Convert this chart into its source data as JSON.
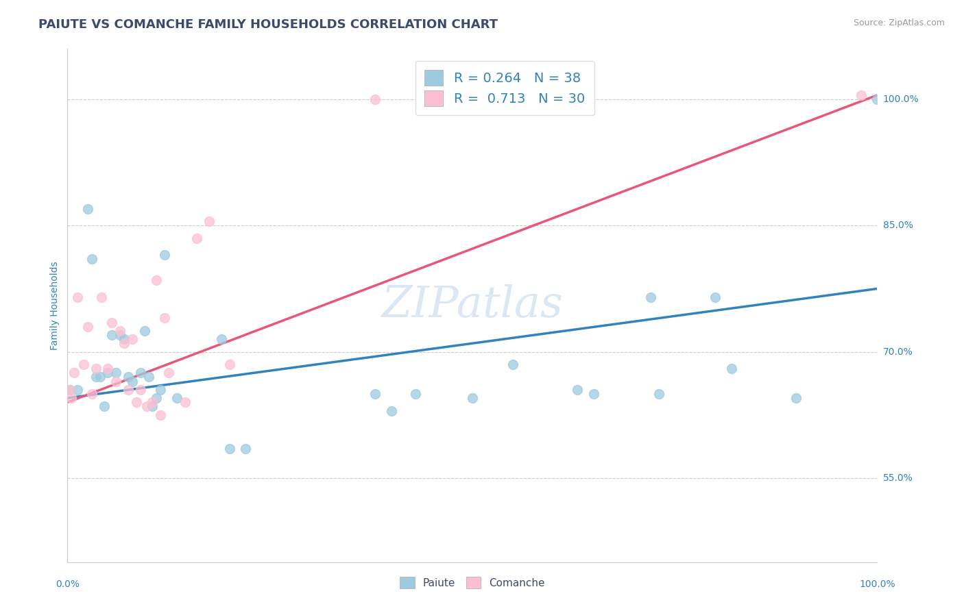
{
  "title": "PAIUTE VS COMANCHE FAMILY HOUSEHOLDS CORRELATION CHART",
  "source": "Source: ZipAtlas.com",
  "ylabel": "Family Households",
  "watermark": "ZIPatlas",
  "legend_blue_r": "R = 0.264",
  "legend_blue_n": "N = 38",
  "legend_pink_r": "R = 0.713",
  "legend_pink_n": "N = 30",
  "blue_scatter_color": "#9ecae1",
  "pink_scatter_color": "#fcbfd2",
  "blue_line_color": "#3182bd",
  "pink_line_color": "#e8577a",
  "title_color": "#3d4a6b",
  "axis_label_color": "#3182bd",
  "grid_color": "#cccccc",
  "background_color": "#ffffff",
  "paiute_x": [
    0.3,
    1.2,
    2.5,
    3.0,
    3.5,
    4.0,
    4.5,
    5.0,
    5.5,
    6.0,
    6.5,
    7.0,
    7.5,
    8.0,
    9.0,
    9.5,
    10.0,
    10.5,
    11.0,
    11.5,
    12.0,
    13.5,
    19.0,
    20.0,
    22.0,
    38.0,
    40.0,
    43.0,
    50.0,
    55.0,
    63.0,
    65.0,
    72.0,
    73.0,
    80.0,
    82.0,
    90.0,
    100.0
  ],
  "paiute_y": [
    65.5,
    65.5,
    87.0,
    81.0,
    67.0,
    67.0,
    63.5,
    67.5,
    72.0,
    67.5,
    72.0,
    71.5,
    67.0,
    66.5,
    67.5,
    72.5,
    67.0,
    63.5,
    64.5,
    65.5,
    81.5,
    64.5,
    71.5,
    58.5,
    58.5,
    65.0,
    63.0,
    65.0,
    64.5,
    68.5,
    65.5,
    65.0,
    76.5,
    65.0,
    76.5,
    68.0,
    64.5,
    100.0
  ],
  "comanche_x": [
    0.3,
    0.5,
    0.8,
    1.2,
    2.0,
    2.5,
    3.0,
    3.5,
    4.2,
    5.0,
    5.5,
    6.0,
    6.5,
    7.0,
    7.5,
    8.0,
    8.5,
    9.0,
    9.8,
    10.5,
    11.0,
    11.5,
    12.0,
    12.5,
    14.5,
    16.0,
    17.5,
    20.0,
    38.0,
    98.0
  ],
  "comanche_y": [
    65.5,
    64.5,
    67.5,
    76.5,
    68.5,
    73.0,
    65.0,
    68.0,
    76.5,
    68.0,
    73.5,
    66.5,
    72.5,
    71.0,
    65.5,
    71.5,
    64.0,
    65.5,
    63.5,
    64.0,
    78.5,
    62.5,
    74.0,
    67.5,
    64.0,
    83.5,
    85.5,
    68.5,
    100.0,
    100.5
  ],
  "blue_line_x": [
    0.0,
    100.0
  ],
  "blue_line_y": [
    64.5,
    77.5
  ],
  "pink_line_x": [
    0.0,
    100.0
  ],
  "pink_line_y": [
    64.0,
    100.5
  ],
  "xlim": [
    0.0,
    100.0
  ],
  "ylim": [
    45.0,
    106.0
  ],
  "yticks": [
    55.0,
    70.0,
    85.0,
    100.0
  ],
  "ytick_labels": [
    "55.0%",
    "70.0%",
    "85.0%",
    "100.0%"
  ],
  "title_fontsize": 13,
  "source_fontsize": 9,
  "axis_label_fontsize": 10,
  "legend_fontsize": 14,
  "tick_fontsize": 10
}
